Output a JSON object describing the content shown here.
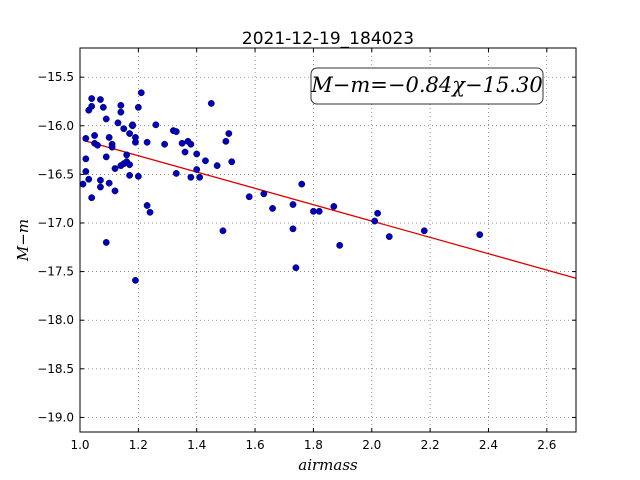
{
  "chart_data": {
    "type": "scatter",
    "title": "2021-12-19_184023",
    "xlabel": "airmass",
    "ylabel": "M−m",
    "xlim": [
      1.0,
      2.7
    ],
    "ylim": [
      -19.15,
      -15.2
    ],
    "xticks": [
      1.0,
      1.2,
      1.4,
      1.6,
      1.8,
      2.0,
      2.2,
      2.4,
      2.6
    ],
    "xtick_labels": [
      "1.0",
      "1.2",
      "1.4",
      "1.6",
      "1.8",
      "2.0",
      "2.2",
      "2.4",
      "2.6"
    ],
    "yticks": [
      -15.5,
      -16.0,
      -16.5,
      -17.0,
      -17.5,
      -18.0,
      -18.5,
      -19.0
    ],
    "ytick_labels": [
      "−15.5",
      "−16.0",
      "−16.5",
      "−17.0",
      "−17.5",
      "−18.0",
      "−18.5",
      "−19.0"
    ],
    "grid": true,
    "annotation": "M−m=−0.84χ−15.30",
    "fit": {
      "slope": -0.84,
      "intercept": -15.3,
      "color": "#dd0000"
    },
    "marker_color": "#0000bb",
    "points": [
      [
        1.01,
        -16.6
      ],
      [
        1.02,
        -16.13
      ],
      [
        1.02,
        -16.34
      ],
      [
        1.02,
        -16.47
      ],
      [
        1.03,
        -16.55
      ],
      [
        1.03,
        -15.84
      ],
      [
        1.04,
        -15.72
      ],
      [
        1.04,
        -15.8
      ],
      [
        1.04,
        -16.74
      ],
      [
        1.05,
        -16.1
      ],
      [
        1.05,
        -16.18
      ],
      [
        1.06,
        -16.2
      ],
      [
        1.07,
        -16.63
      ],
      [
        1.07,
        -16.56
      ],
      [
        1.07,
        -15.73
      ],
      [
        1.08,
        -15.81
      ],
      [
        1.09,
        -15.93
      ],
      [
        1.09,
        -16.32
      ],
      [
        1.09,
        -17.2
      ],
      [
        1.1,
        -16.59
      ],
      [
        1.1,
        -16.12
      ],
      [
        1.11,
        -16.19
      ],
      [
        1.11,
        -16.22
      ],
      [
        1.12,
        -16.67
      ],
      [
        1.12,
        -16.44
      ],
      [
        1.13,
        -15.97
      ],
      [
        1.14,
        -15.79
      ],
      [
        1.14,
        -15.86
      ],
      [
        1.14,
        -16.41
      ],
      [
        1.15,
        -16.03
      ],
      [
        1.15,
        -16.39
      ],
      [
        1.16,
        -16.3
      ],
      [
        1.16,
        -16.37
      ],
      [
        1.17,
        -16.08
      ],
      [
        1.17,
        -16.4
      ],
      [
        1.17,
        -16.51
      ],
      [
        1.18,
        -16.0
      ],
      [
        1.18,
        -15.99
      ],
      [
        1.19,
        -16.17
      ],
      [
        1.19,
        -16.12
      ],
      [
        1.19,
        -17.59
      ],
      [
        1.2,
        -15.81
      ],
      [
        1.2,
        -16.52
      ],
      [
        1.21,
        -15.66
      ],
      [
        1.23,
        -16.17
      ],
      [
        1.23,
        -16.82
      ],
      [
        1.24,
        -16.89
      ],
      [
        1.26,
        -15.99
      ],
      [
        1.29,
        -16.19
      ],
      [
        1.32,
        -16.05
      ],
      [
        1.33,
        -16.06
      ],
      [
        1.33,
        -16.49
      ],
      [
        1.35,
        -16.18
      ],
      [
        1.36,
        -16.27
      ],
      [
        1.37,
        -16.16
      ],
      [
        1.38,
        -16.19
      ],
      [
        1.38,
        -16.53
      ],
      [
        1.4,
        -16.29
      ],
      [
        1.4,
        -16.45
      ],
      [
        1.41,
        -16.53
      ],
      [
        1.43,
        -16.36
      ],
      [
        1.45,
        -15.77
      ],
      [
        1.47,
        -16.41
      ],
      [
        1.49,
        -17.08
      ],
      [
        1.5,
        -16.16
      ],
      [
        1.51,
        -16.08
      ],
      [
        1.52,
        -16.37
      ],
      [
        1.58,
        -16.73
      ],
      [
        1.63,
        -16.7
      ],
      [
        1.66,
        -16.85
      ],
      [
        1.73,
        -16.81
      ],
      [
        1.73,
        -17.06
      ],
      [
        1.74,
        -17.46
      ],
      [
        1.76,
        -16.6
      ],
      [
        1.8,
        -16.88
      ],
      [
        1.82,
        -16.88
      ],
      [
        1.87,
        -16.83
      ],
      [
        1.89,
        -17.23
      ],
      [
        2.01,
        -16.98
      ],
      [
        2.02,
        -16.9
      ],
      [
        2.06,
        -17.14
      ],
      [
        2.18,
        -17.08
      ],
      [
        2.37,
        -17.12
      ]
    ]
  }
}
